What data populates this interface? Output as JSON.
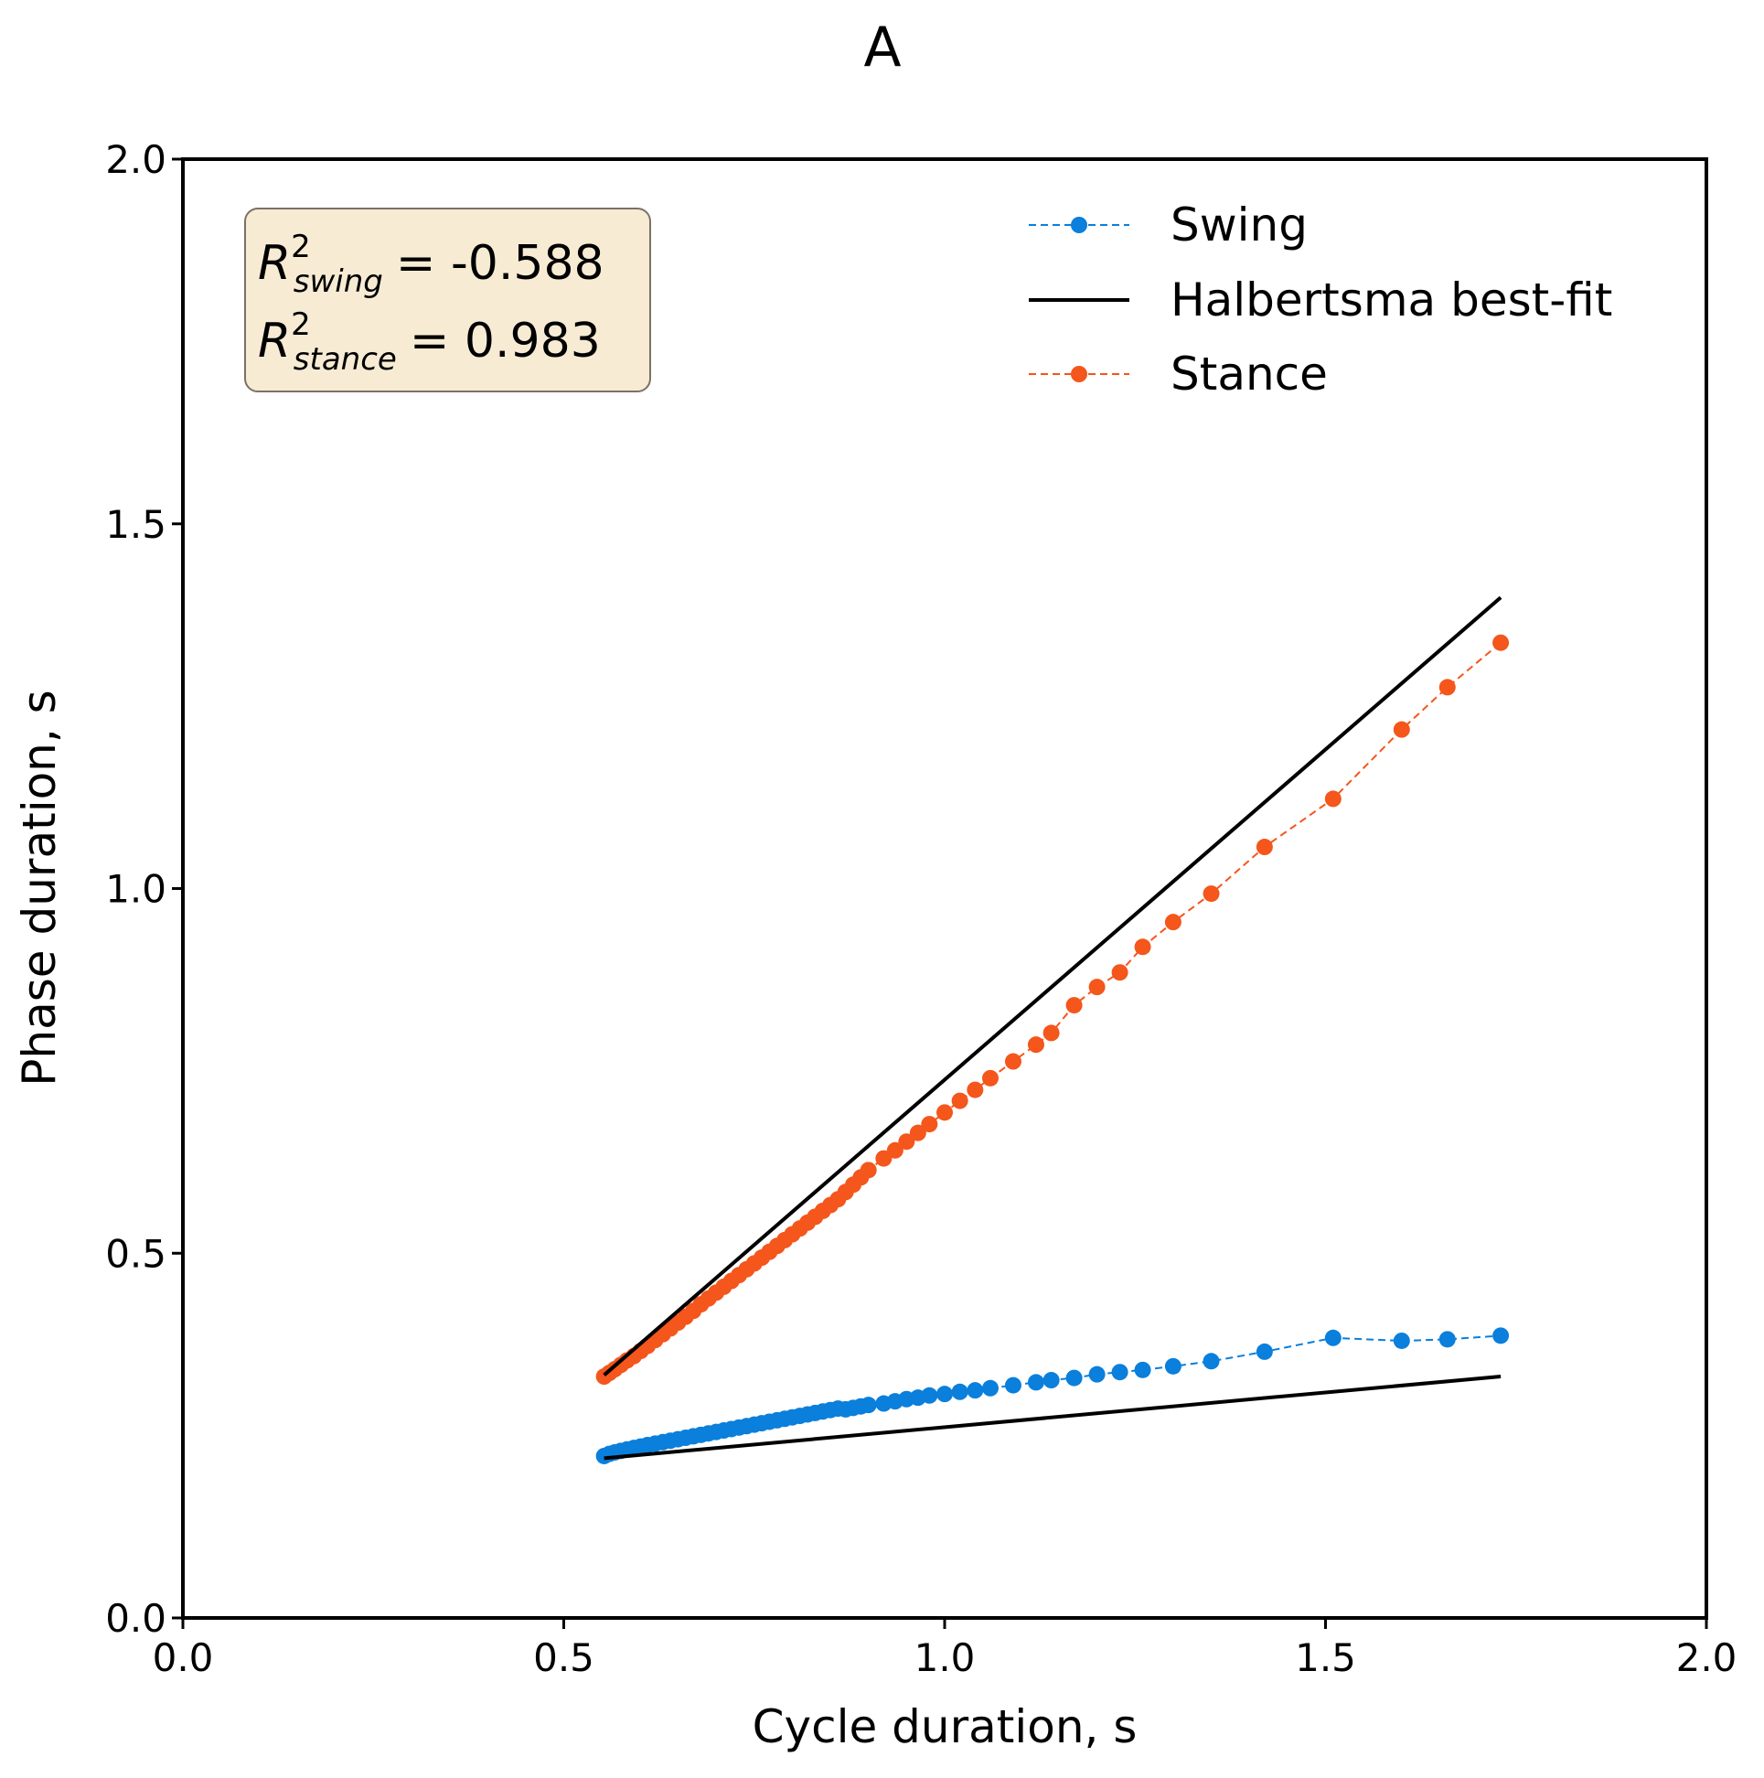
{
  "chart_data": {
    "type": "line",
    "title": "A",
    "xlabel": "Cycle duration, s",
    "ylabel": "Phase duration, s",
    "xlim": [
      0.0,
      2.0
    ],
    "ylim": [
      0.0,
      2.0
    ],
    "x_ticks": [
      "0.0",
      "0.5",
      "1.0",
      "1.5",
      "2.0"
    ],
    "y_ticks": [
      "0.0",
      "0.5",
      "1.0",
      "1.5",
      "2.0"
    ],
    "x_tick_values": [
      0.0,
      0.5,
      1.0,
      1.5,
      2.0
    ],
    "y_tick_values": [
      0.0,
      0.5,
      1.0,
      1.5,
      2.0
    ],
    "grid": false,
    "legend_position": "top-right",
    "stats_box": {
      "swing": {
        "symbol": "R",
        "sup": "2",
        "sub": "swing",
        "value_text": "= -0.588"
      },
      "stance": {
        "symbol": "R",
        "sup": "2",
        "sub": "stance",
        "value_text": "= 0.983"
      },
      "background": "#f7ebd4",
      "border": "#7a7266"
    },
    "series": [
      {
        "name": "Swing",
        "style": "dashed-markers",
        "color": "#0a7fdc",
        "x": [
          0.553,
          0.56,
          0.567,
          0.575,
          0.583,
          0.592,
          0.601,
          0.61,
          0.62,
          0.63,
          0.64,
          0.65,
          0.66,
          0.67,
          0.68,
          0.69,
          0.7,
          0.71,
          0.72,
          0.73,
          0.74,
          0.75,
          0.76,
          0.77,
          0.78,
          0.79,
          0.8,
          0.81,
          0.82,
          0.83,
          0.84,
          0.85,
          0.86,
          0.87,
          0.88,
          0.89,
          0.9,
          0.92,
          0.935,
          0.95,
          0.965,
          0.98,
          1.0,
          1.02,
          1.04,
          1.06,
          1.09,
          1.12,
          1.14,
          1.17,
          1.2,
          1.23,
          1.26,
          1.3,
          1.35,
          1.42,
          1.51,
          1.6,
          1.66,
          1.73
        ],
        "y": [
          0.222,
          0.225,
          0.227,
          0.229,
          0.231,
          0.233,
          0.235,
          0.237,
          0.239,
          0.241,
          0.243,
          0.245,
          0.247,
          0.249,
          0.251,
          0.253,
          0.255,
          0.257,
          0.259,
          0.261,
          0.263,
          0.265,
          0.267,
          0.269,
          0.271,
          0.273,
          0.275,
          0.277,
          0.279,
          0.281,
          0.283,
          0.285,
          0.287,
          0.286,
          0.288,
          0.29,
          0.292,
          0.294,
          0.297,
          0.3,
          0.302,
          0.305,
          0.307,
          0.31,
          0.312,
          0.315,
          0.319,
          0.323,
          0.326,
          0.329,
          0.334,
          0.337,
          0.34,
          0.345,
          0.352,
          0.365,
          0.384,
          0.38,
          0.382,
          0.387
        ]
      },
      {
        "name": "Halbertsma best-fit",
        "style": "solid",
        "color": "#000000",
        "segments": [
          {
            "x": [
              0.553,
              1.73
            ],
            "y": [
              0.333,
              1.399
            ]
          },
          {
            "x": [
              0.553,
              1.73
            ],
            "y": [
              0.219,
              0.331
            ]
          }
        ]
      },
      {
        "name": "Stance",
        "style": "dashed-markers",
        "color": "#f4561c",
        "x": [
          0.553,
          0.56,
          0.567,
          0.575,
          0.583,
          0.592,
          0.601,
          0.61,
          0.62,
          0.63,
          0.64,
          0.65,
          0.66,
          0.67,
          0.68,
          0.69,
          0.7,
          0.71,
          0.72,
          0.73,
          0.74,
          0.75,
          0.76,
          0.77,
          0.78,
          0.79,
          0.8,
          0.81,
          0.82,
          0.83,
          0.84,
          0.85,
          0.86,
          0.87,
          0.88,
          0.89,
          0.9,
          0.92,
          0.935,
          0.95,
          0.965,
          0.98,
          1.0,
          1.02,
          1.04,
          1.06,
          1.09,
          1.12,
          1.14,
          1.17,
          1.2,
          1.23,
          1.26,
          1.3,
          1.35,
          1.42,
          1.51,
          1.6,
          1.66,
          1.73
        ],
        "y": [
          0.331,
          0.336,
          0.341,
          0.347,
          0.353,
          0.359,
          0.366,
          0.373,
          0.381,
          0.389,
          0.397,
          0.405,
          0.413,
          0.421,
          0.43,
          0.438,
          0.446,
          0.454,
          0.462,
          0.47,
          0.478,
          0.486,
          0.494,
          0.502,
          0.51,
          0.518,
          0.526,
          0.534,
          0.542,
          0.55,
          0.558,
          0.566,
          0.574,
          0.584,
          0.594,
          0.604,
          0.614,
          0.63,
          0.641,
          0.653,
          0.665,
          0.677,
          0.693,
          0.709,
          0.724,
          0.74,
          0.763,
          0.786,
          0.802,
          0.84,
          0.865,
          0.885,
          0.92,
          0.954,
          0.993,
          1.057,
          1.123,
          1.218,
          1.276,
          1.337
        ]
      }
    ]
  }
}
